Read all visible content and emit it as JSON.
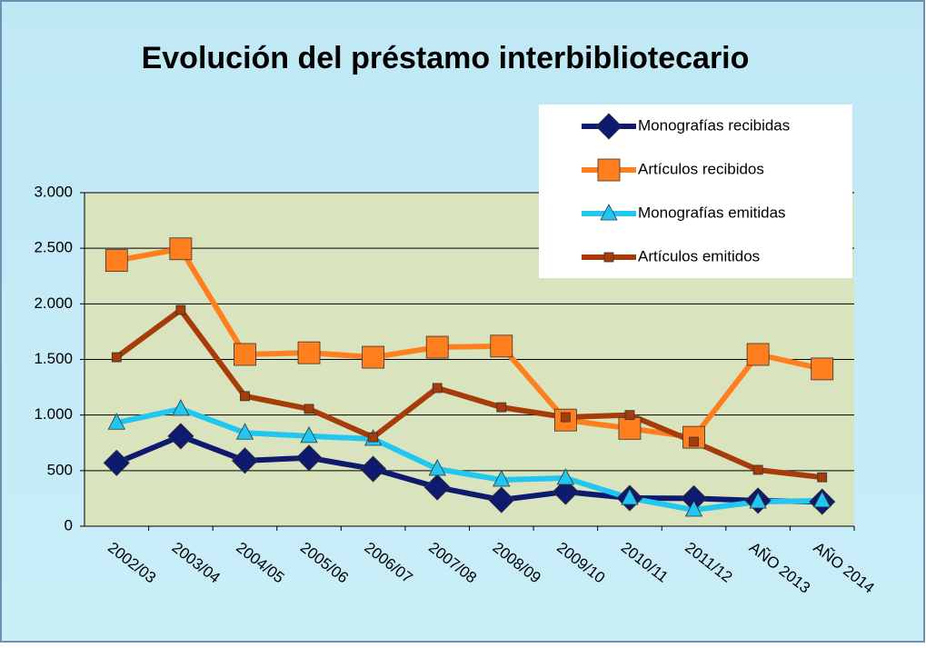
{
  "chart_data": {
    "type": "line",
    "title": "Evolución del préstamo interbibliotecario",
    "categories": [
      "2002/03",
      "2003/04",
      "2004/05",
      "2005/06",
      "2006/07",
      "2007/08",
      "2008/09",
      "2009/10",
      "2010/11",
      "2011/12",
      "AÑO 2013",
      "AÑO 2014"
    ],
    "series": [
      {
        "name": "Monografías recibidas",
        "color": "#0d1a6e",
        "marker": "diamond",
        "values": [
          570,
          810,
          590,
          615,
          515,
          350,
          237,
          310,
          253,
          250,
          230,
          220
        ]
      },
      {
        "name": "Artículos recibidos",
        "color": "#ff7f1f",
        "marker": "square",
        "values": [
          2390,
          2495,
          1545,
          1560,
          1520,
          1610,
          1620,
          955,
          880,
          800,
          1545,
          1415
        ]
      },
      {
        "name": "Monografías emitidas",
        "color": "#21c7f0",
        "marker": "triangle",
        "values": [
          930,
          1055,
          840,
          810,
          785,
          515,
          417,
          433,
          253,
          147,
          220,
          230
        ]
      },
      {
        "name": "Artículos emitidos",
        "color": "#a63c0a",
        "marker": "smallsquare",
        "values": [
          1520,
          1945,
          1170,
          1055,
          800,
          1243,
          1070,
          980,
          1000,
          760,
          507,
          440
        ]
      }
    ],
    "ylim": [
      0,
      3000
    ],
    "yticks": [
      0,
      500,
      {
        "value": 1000,
        "label": "1.000"
      },
      {
        "value": 1500,
        "label": "1.500"
      },
      {
        "value": 2000,
        "label": "2.000"
      },
      {
        "value": 2500,
        "label": "2.500"
      },
      {
        "value": 3000,
        "label": "3.000"
      }
    ],
    "grid": true,
    "legend": "top-right"
  }
}
